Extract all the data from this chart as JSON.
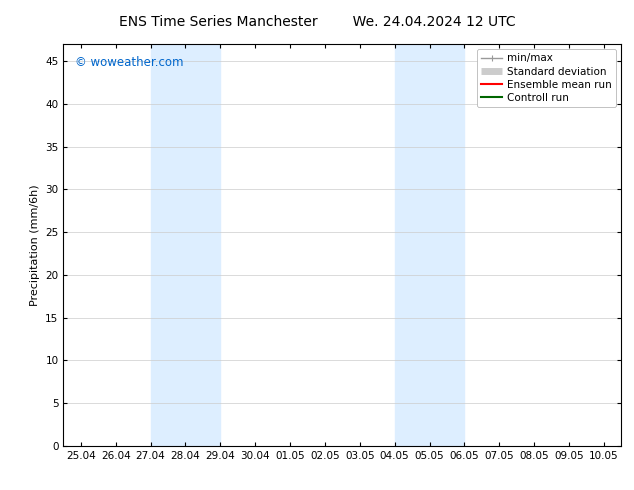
{
  "title_left": "ENS Time Series Manchester",
  "title_right": "We. 24.04.2024 12 UTC",
  "ylabel": "Precipitation (mm/6h)",
  "xlabel": "",
  "ylim": [
    0,
    47
  ],
  "yticks": [
    0,
    5,
    10,
    15,
    20,
    25,
    30,
    35,
    40,
    45
  ],
  "xtick_labels": [
    "25.04",
    "26.04",
    "27.04",
    "28.04",
    "29.04",
    "30.04",
    "01.05",
    "02.05",
    "03.05",
    "04.05",
    "05.05",
    "06.05",
    "07.05",
    "08.05",
    "09.05",
    "10.05"
  ],
  "xtick_positions": [
    0,
    1,
    2,
    3,
    4,
    5,
    6,
    7,
    8,
    9,
    10,
    11,
    12,
    13,
    14,
    15
  ],
  "xlim": [
    -0.5,
    15.5
  ],
  "shaded_bands": [
    {
      "xmin": 2,
      "xmax": 4,
      "color": "#ddeeff"
    },
    {
      "xmin": 9,
      "xmax": 11,
      "color": "#ddeeff"
    }
  ],
  "watermark_text": "© woweather.com",
  "watermark_color": "#0066cc",
  "background_color": "#ffffff",
  "legend_items": [
    {
      "label": "min/max",
      "color": "#999999",
      "linestyle": "-",
      "linewidth": 1.0
    },
    {
      "label": "Standard deviation",
      "color": "#cccccc",
      "linestyle": "-",
      "linewidth": 5
    },
    {
      "label": "Ensemble mean run",
      "color": "#ff0000",
      "linestyle": "-",
      "linewidth": 1.5
    },
    {
      "label": "Controll run",
      "color": "#006600",
      "linestyle": "-",
      "linewidth": 1.5
    }
  ],
  "title_fontsize": 10,
  "axis_label_fontsize": 8,
  "tick_fontsize": 7.5,
  "legend_fontsize": 7.5,
  "watermark_fontsize": 8.5
}
